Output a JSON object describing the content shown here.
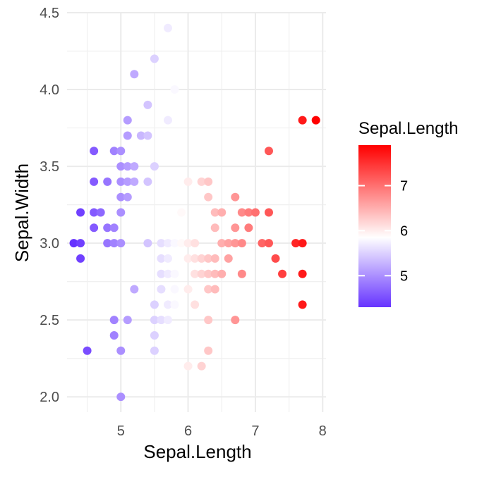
{
  "chart_data": {
    "type": "scatter",
    "title": "",
    "xlabel": "Sepal.Length",
    "ylabel": "Sepal.Width",
    "xlim": [
      4.2,
      8.05
    ],
    "ylim": [
      1.9,
      4.5
    ],
    "xticks": [
      5,
      6,
      7,
      8
    ],
    "yticks": [
      2.0,
      2.5,
      3.0,
      3.5,
      4.0,
      4.5
    ],
    "ytick_labels": [
      "2.0",
      "2.5",
      "3.0",
      "3.5",
      "4.0",
      "4.5"
    ],
    "grid": true,
    "legend": {
      "title": "Sepal.Length",
      "position": "right",
      "type": "colorbar",
      "range": [
        4.3,
        7.9
      ],
      "ticks": [
        5,
        6,
        7
      ],
      "tick_labels": [
        "5",
        "6",
        "7"
      ]
    },
    "color_scale": {
      "low": "#6633ff",
      "mid": "#ffffff",
      "high": "#ff0000",
      "midpoint": 5.85
    },
    "points": [
      [
        4.3,
        3.0
      ],
      [
        4.4,
        2.9
      ],
      [
        4.4,
        3.0
      ],
      [
        4.4,
        3.2
      ],
      [
        4.5,
        2.3
      ],
      [
        4.6,
        3.1
      ],
      [
        4.6,
        3.2
      ],
      [
        4.6,
        3.4
      ],
      [
        4.6,
        3.6
      ],
      [
        4.7,
        3.2
      ],
      [
        4.8,
        3.0
      ],
      [
        4.8,
        3.1
      ],
      [
        4.8,
        3.4
      ],
      [
        4.9,
        2.4
      ],
      [
        4.9,
        2.5
      ],
      [
        4.9,
        3.0
      ],
      [
        4.9,
        3.1
      ],
      [
        4.9,
        3.6
      ],
      [
        5.0,
        2.0
      ],
      [
        5.0,
        2.3
      ],
      [
        5.0,
        3.0
      ],
      [
        5.0,
        3.2
      ],
      [
        5.0,
        3.3
      ],
      [
        5.0,
        3.4
      ],
      [
        5.0,
        3.5
      ],
      [
        5.0,
        3.6
      ],
      [
        5.1,
        2.5
      ],
      [
        5.1,
        3.3
      ],
      [
        5.1,
        3.4
      ],
      [
        5.1,
        3.5
      ],
      [
        5.1,
        3.7
      ],
      [
        5.1,
        3.8
      ],
      [
        5.2,
        2.7
      ],
      [
        5.2,
        3.4
      ],
      [
        5.2,
        3.5
      ],
      [
        5.2,
        4.1
      ],
      [
        5.3,
        3.7
      ],
      [
        5.4,
        3.0
      ],
      [
        5.4,
        3.4
      ],
      [
        5.4,
        3.7
      ],
      [
        5.4,
        3.9
      ],
      [
        5.5,
        2.3
      ],
      [
        5.5,
        2.4
      ],
      [
        5.5,
        2.5
      ],
      [
        5.5,
        2.6
      ],
      [
        5.5,
        3.5
      ],
      [
        5.5,
        4.2
      ],
      [
        5.6,
        2.5
      ],
      [
        5.6,
        2.7
      ],
      [
        5.6,
        2.8
      ],
      [
        5.6,
        2.9
      ],
      [
        5.6,
        3.0
      ],
      [
        5.7,
        2.5
      ],
      [
        5.7,
        2.6
      ],
      [
        5.7,
        2.8
      ],
      [
        5.7,
        2.9
      ],
      [
        5.7,
        3.0
      ],
      [
        5.7,
        3.8
      ],
      [
        5.7,
        4.4
      ],
      [
        5.8,
        2.6
      ],
      [
        5.8,
        2.7
      ],
      [
        5.8,
        2.8
      ],
      [
        5.8,
        3.0
      ],
      [
        5.8,
        4.0
      ],
      [
        5.9,
        3.0
      ],
      [
        5.9,
        3.2
      ],
      [
        6.0,
        2.2
      ],
      [
        6.0,
        2.7
      ],
      [
        6.0,
        2.9
      ],
      [
        6.0,
        3.0
      ],
      [
        6.0,
        3.4
      ],
      [
        6.1,
        2.6
      ],
      [
        6.1,
        2.8
      ],
      [
        6.1,
        2.9
      ],
      [
        6.1,
        3.0
      ],
      [
        6.2,
        2.2
      ],
      [
        6.2,
        2.8
      ],
      [
        6.2,
        2.9
      ],
      [
        6.2,
        3.4
      ],
      [
        6.3,
        2.3
      ],
      [
        6.3,
        2.5
      ],
      [
        6.3,
        2.7
      ],
      [
        6.3,
        2.8
      ],
      [
        6.3,
        2.9
      ],
      [
        6.3,
        3.3
      ],
      [
        6.3,
        3.4
      ],
      [
        6.4,
        2.7
      ],
      [
        6.4,
        2.8
      ],
      [
        6.4,
        2.9
      ],
      [
        6.4,
        3.1
      ],
      [
        6.4,
        3.2
      ],
      [
        6.5,
        2.8
      ],
      [
        6.5,
        3.0
      ],
      [
        6.5,
        3.2
      ],
      [
        6.6,
        2.9
      ],
      [
        6.6,
        3.0
      ],
      [
        6.7,
        2.5
      ],
      [
        6.7,
        3.0
      ],
      [
        6.7,
        3.1
      ],
      [
        6.7,
        3.3
      ],
      [
        6.8,
        2.8
      ],
      [
        6.8,
        3.0
      ],
      [
        6.8,
        3.2
      ],
      [
        6.9,
        3.1
      ],
      [
        6.9,
        3.2
      ],
      [
        7.0,
        3.2
      ],
      [
        7.1,
        3.0
      ],
      [
        7.2,
        3.0
      ],
      [
        7.2,
        3.2
      ],
      [
        7.2,
        3.6
      ],
      [
        7.3,
        2.9
      ],
      [
        7.4,
        2.8
      ],
      [
        7.6,
        3.0
      ],
      [
        7.7,
        2.6
      ],
      [
        7.7,
        2.8
      ],
      [
        7.7,
        3.0
      ],
      [
        7.7,
        3.8
      ],
      [
        7.9,
        3.8
      ]
    ]
  }
}
